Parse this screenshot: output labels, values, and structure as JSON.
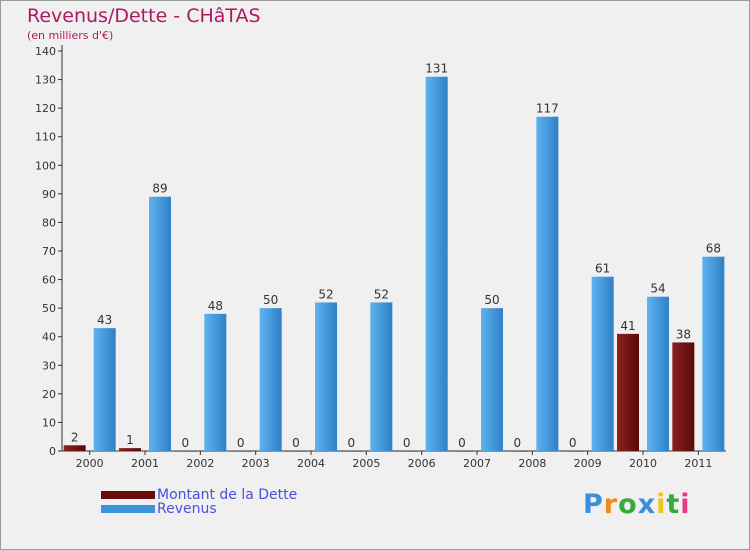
{
  "chart_data": {
    "type": "bar",
    "title": "Revenus/Dette - CHâTAS",
    "subtitle": "(en milliers d'€)",
    "categories": [
      "2000",
      "2001",
      "2002",
      "2003",
      "2004",
      "2005",
      "2006",
      "2007",
      "2008",
      "2009",
      "2010",
      "2011"
    ],
    "series": [
      {
        "name": "Montant de la Dette",
        "color": "#7a1414",
        "values": [
          2,
          1,
          0,
          0,
          0,
          0,
          0,
          0,
          0,
          0,
          41,
          38
        ]
      },
      {
        "name": "Revenus",
        "color": "#3a93dc",
        "values": [
          43,
          89,
          48,
          50,
          52,
          52,
          131,
          50,
          117,
          61,
          54,
          68
        ]
      }
    ],
    "ylim": [
      0,
      140
    ],
    "yticks": [
      0,
      10,
      20,
      30,
      40,
      50,
      60,
      70,
      80,
      90,
      100,
      110,
      120,
      130,
      140
    ],
    "grid": false,
    "legend_position": "bottom-left"
  },
  "logo": {
    "letters": [
      "P",
      "r",
      "o",
      "x",
      "i",
      "t",
      "i"
    ],
    "colors": [
      "#3a8fd8",
      "#f08a1c",
      "#3aa83a",
      "#3a8fd8",
      "#f0c81c",
      "#3aa83a",
      "#e83a8a"
    ]
  }
}
